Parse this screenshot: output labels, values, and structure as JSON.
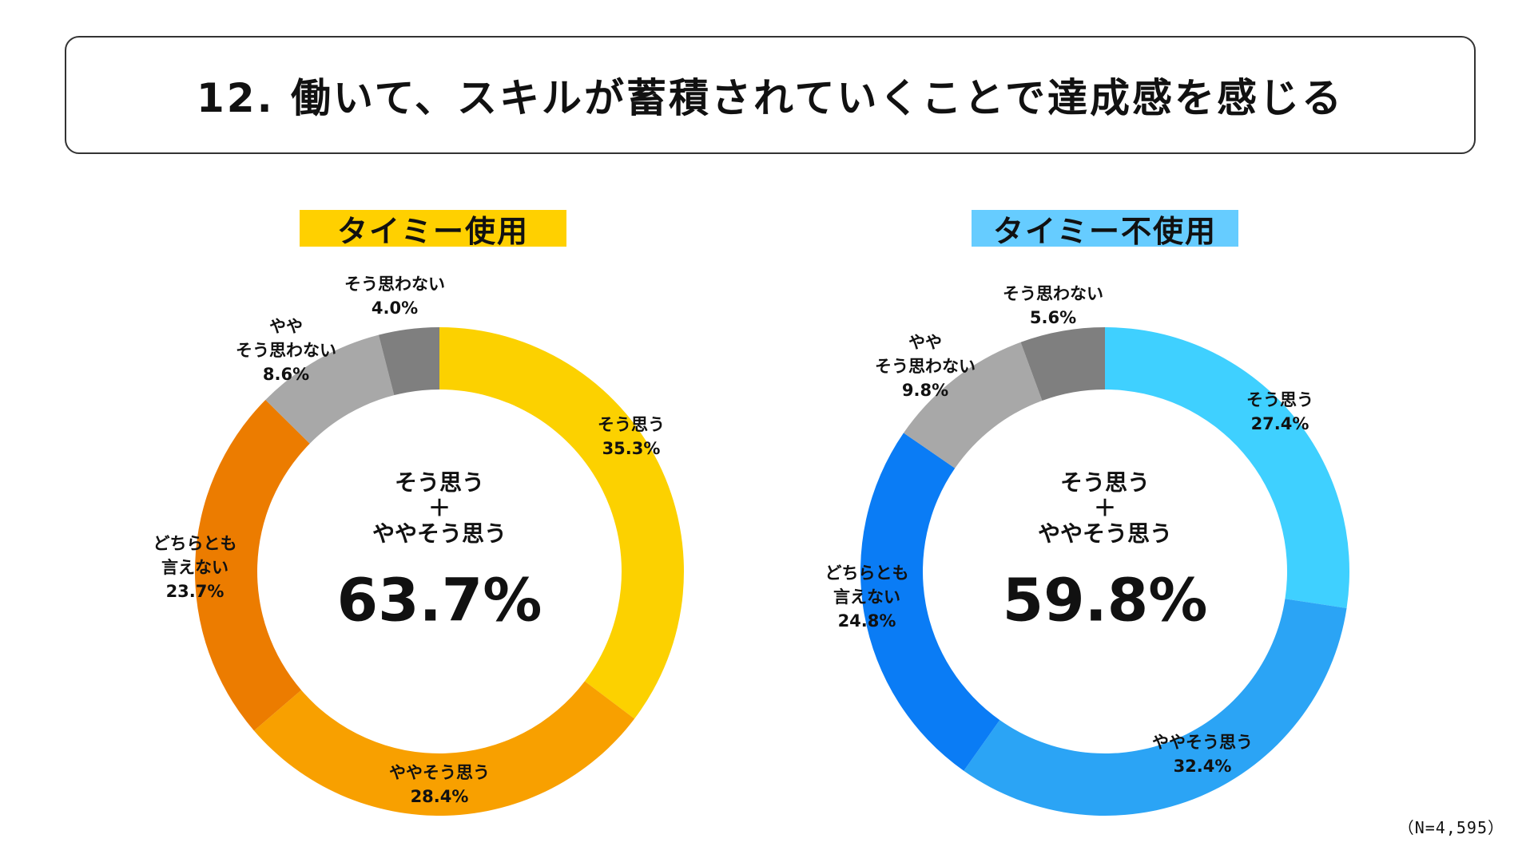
{
  "title": "12. 働いて、スキルが蓄積されていくことで達成感を感じる",
  "sample_note": "（N=4,595）",
  "chart_data": [
    {
      "type": "pie",
      "label": "タイミー使用",
      "label_color": "#FFD000",
      "center_lines": [
        "そう思う",
        "＋",
        "ややそう思う"
      ],
      "center_value": "63.7%",
      "slices": [
        {
          "name": "そう思う",
          "lines": [
            "そう思う"
          ],
          "pct_label": "35.3%",
          "value": 35.3,
          "color": "#FCD100"
        },
        {
          "name": "ややそう思う",
          "lines": [
            "ややそう思う"
          ],
          "pct_label": "28.4%",
          "value": 28.4,
          "color": "#F8A000"
        },
        {
          "name": "どちらとも言えない",
          "lines": [
            "どちらとも",
            "言えない"
          ],
          "pct_label": "23.7%",
          "value": 23.7,
          "color": "#EC7C00"
        },
        {
          "name": "ややそう思わない",
          "lines": [
            "やや",
            "そう思わない"
          ],
          "pct_label": "8.6%",
          "value": 8.6,
          "color": "#A8A8A8"
        },
        {
          "name": "そう思わない",
          "lines": [
            "そう思わない"
          ],
          "pct_label": "4.0%",
          "value": 4.0,
          "color": "#7F7F7F"
        }
      ]
    },
    {
      "type": "pie",
      "label": "タイミー不使用",
      "label_color": "#66CCFF",
      "center_lines": [
        "そう思う",
        "＋",
        "ややそう思う"
      ],
      "center_value": "59.8%",
      "slices": [
        {
          "name": "そう思う",
          "lines": [
            "そう思う"
          ],
          "pct_label": "27.4%",
          "value": 27.4,
          "color": "#3FD0FF"
        },
        {
          "name": "ややそう思う",
          "lines": [
            "ややそう思う"
          ],
          "pct_label": "32.4%",
          "value": 32.4,
          "color": "#2BA4F5"
        },
        {
          "name": "どちらとも言えない",
          "lines": [
            "どちらとも",
            "言えない"
          ],
          "pct_label": "24.8%",
          "value": 24.8,
          "color": "#0A7CF5"
        },
        {
          "name": "ややそう思わない",
          "lines": [
            "やや",
            "そう思わない"
          ],
          "pct_label": "9.8%",
          "value": 9.8,
          "color": "#A8A8A8"
        },
        {
          "name": "そう思わない",
          "lines": [
            "そう思わない"
          ],
          "pct_label": "5.6%",
          "value": 5.6,
          "color": "#7F7F7F"
        }
      ]
    }
  ]
}
